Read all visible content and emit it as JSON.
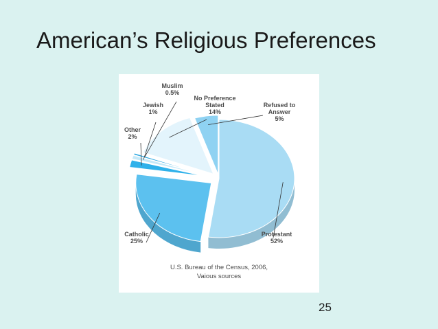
{
  "slide": {
    "title": "American’s Religious Preferences",
    "page_number": "25"
  },
  "chart_data": {
    "type": "pie",
    "title": "",
    "slices": [
      {
        "name": "Protestant",
        "value": 52,
        "label_lines": [
          "Protestant",
          "52%"
        ],
        "color": "#a9dcf4"
      },
      {
        "name": "Catholic",
        "value": 25,
        "label_lines": [
          "Catholic",
          "25%"
        ],
        "color": "#5cc1ef"
      },
      {
        "name": "Other",
        "value": 2,
        "label_lines": [
          "Other",
          "2%"
        ],
        "color": "#2fb1ea"
      },
      {
        "name": "Jewish",
        "value": 1,
        "label_lines": [
          "Jewish",
          "1%"
        ],
        "color": "#c6e9f8"
      },
      {
        "name": "Muslim",
        "value": 0.5,
        "label_lines": [
          "Muslim",
          "0.5%"
        ],
        "color": "#2aa6e0"
      },
      {
        "name": "No Preference Stated",
        "value": 14,
        "label_lines": [
          "No Preference",
          "Stated",
          "14%"
        ],
        "color": "#e3f4fc"
      },
      {
        "name": "Refused to Answer",
        "value": 5,
        "label_lines": [
          "Refused to",
          "Answer",
          "5%"
        ],
        "color": "#8fd2f2"
      }
    ],
    "source_lines": [
      "U.S. Bureau of the Census, 2006,",
      "Vaious sources"
    ]
  }
}
